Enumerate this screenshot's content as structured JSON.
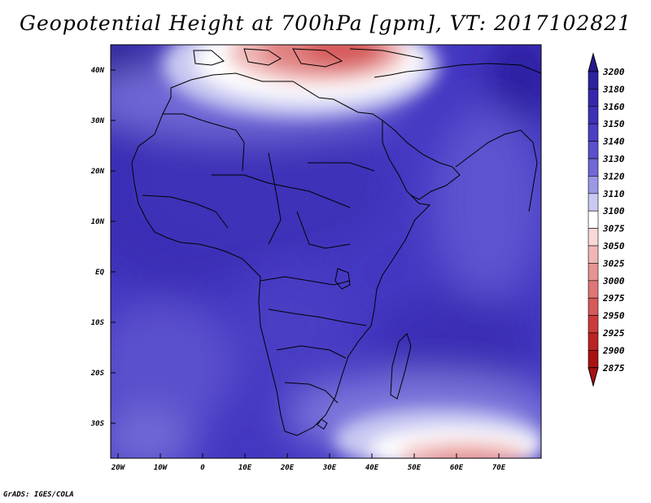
{
  "title": "Geopotential Height at 700hPa [gpm], VT: 2017102821",
  "credit": "GrADS: IGES/COLA",
  "colors": {
    "background": "#ffffff",
    "coast": "#000000"
  },
  "lat_ticks": [
    "40N",
    "30N",
    "20N",
    "10N",
    "EQ",
    "10S",
    "20S",
    "30S"
  ],
  "lon_ticks": [
    "20W",
    "10W",
    "0",
    "10E",
    "20E",
    "30E",
    "40E",
    "50E",
    "60E",
    "70E"
  ],
  "map": {
    "lon_range": [
      -22,
      80
    ],
    "lat_range": [
      -37,
      45
    ]
  },
  "colorbar": {
    "labels": [
      "3200",
      "3180",
      "3160",
      "3150",
      "3140",
      "3130",
      "3120",
      "3110",
      "3100",
      "3075",
      "3050",
      "3025",
      "3000",
      "2975",
      "2950",
      "2925",
      "2900",
      "2875"
    ],
    "colors": [
      "#24188c",
      "#2c22a0",
      "#3527ad",
      "#3d31b8",
      "#4a3ec4",
      "#5a50cc",
      "#6f68d6",
      "#9b98e6",
      "#c9c9f2",
      "#ffffff",
      "#f8d8d8",
      "#f0b6b6",
      "#e69494",
      "#de7676",
      "#d65a5a",
      "#cc3b3b",
      "#bb2424",
      "#a81212"
    ]
  }
}
